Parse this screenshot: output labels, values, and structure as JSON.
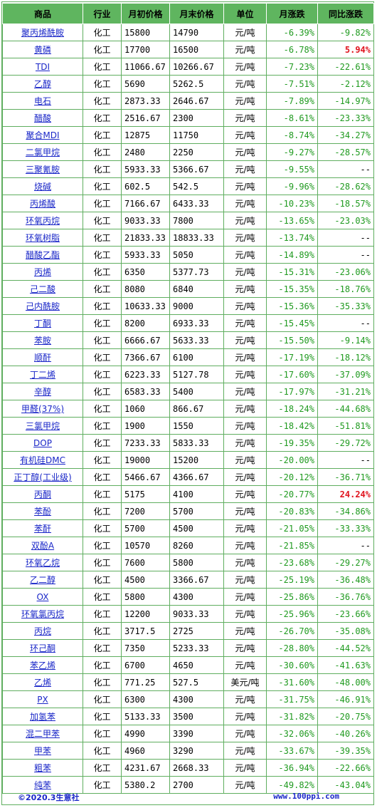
{
  "headers": {
    "name": "商品",
    "industry": "行业",
    "start": "月初价格",
    "end": "月末价格",
    "unit": "单位",
    "mom": "月涨跌",
    "yoy": "同比涨跌"
  },
  "rows": [
    {
      "name": "聚丙烯酰胺",
      "industry": "化工",
      "start": "15800",
      "end": "14790",
      "unit": "元/吨",
      "mom": "-6.39%",
      "yoy": "-9.82%"
    },
    {
      "name": "黄磷",
      "industry": "化工",
      "start": "17700",
      "end": "16500",
      "unit": "元/吨",
      "mom": "-6.78%",
      "yoy": "5.94%"
    },
    {
      "name": "TDI",
      "industry": "化工",
      "start": "11066.67",
      "end": "10266.67",
      "unit": "元/吨",
      "mom": "-7.23%",
      "yoy": "-22.61%"
    },
    {
      "name": "乙醇",
      "industry": "化工",
      "start": "5690",
      "end": "5262.5",
      "unit": "元/吨",
      "mom": "-7.51%",
      "yoy": "-2.12%"
    },
    {
      "name": "电石",
      "industry": "化工",
      "start": "2873.33",
      "end": "2646.67",
      "unit": "元/吨",
      "mom": "-7.89%",
      "yoy": "-14.97%"
    },
    {
      "name": "醋酸",
      "industry": "化工",
      "start": "2516.67",
      "end": "2300",
      "unit": "元/吨",
      "mom": "-8.61%",
      "yoy": "-23.33%"
    },
    {
      "name": "聚合MDI",
      "industry": "化工",
      "start": "12875",
      "end": "11750",
      "unit": "元/吨",
      "mom": "-8.74%",
      "yoy": "-34.27%"
    },
    {
      "name": "二氯甲烷",
      "industry": "化工",
      "start": "2480",
      "end": "2250",
      "unit": "元/吨",
      "mom": "-9.27%",
      "yoy": "-28.57%"
    },
    {
      "name": "三聚氰胺",
      "industry": "化工",
      "start": "5933.33",
      "end": "5366.67",
      "unit": "元/吨",
      "mom": "-9.55%",
      "yoy": "--"
    },
    {
      "name": "烧碱",
      "industry": "化工",
      "start": "602.5",
      "end": "542.5",
      "unit": "元/吨",
      "mom": "-9.96%",
      "yoy": "-28.62%"
    },
    {
      "name": "丙烯酸",
      "industry": "化工",
      "start": "7166.67",
      "end": "6433.33",
      "unit": "元/吨",
      "mom": "-10.23%",
      "yoy": "-18.57%"
    },
    {
      "name": "环氧丙烷",
      "industry": "化工",
      "start": "9033.33",
      "end": "7800",
      "unit": "元/吨",
      "mom": "-13.65%",
      "yoy": "-23.03%"
    },
    {
      "name": "环氧树脂",
      "industry": "化工",
      "start": "21833.33",
      "end": "18833.33",
      "unit": "元/吨",
      "mom": "-13.74%",
      "yoy": "--"
    },
    {
      "name": "醋酸乙酯",
      "industry": "化工",
      "start": "5933.33",
      "end": "5050",
      "unit": "元/吨",
      "mom": "-14.89%",
      "yoy": "--"
    },
    {
      "name": "丙烯",
      "industry": "化工",
      "start": "6350",
      "end": "5377.73",
      "unit": "元/吨",
      "mom": "-15.31%",
      "yoy": "-23.06%"
    },
    {
      "name": "己二酸",
      "industry": "化工",
      "start": "8080",
      "end": "6840",
      "unit": "元/吨",
      "mom": "-15.35%",
      "yoy": "-18.76%"
    },
    {
      "name": "己内酰胺",
      "industry": "化工",
      "start": "10633.33",
      "end": "9000",
      "unit": "元/吨",
      "mom": "-15.36%",
      "yoy": "-35.33%"
    },
    {
      "name": "丁酮",
      "industry": "化工",
      "start": "8200",
      "end": "6933.33",
      "unit": "元/吨",
      "mom": "-15.45%",
      "yoy": "--"
    },
    {
      "name": "苯胺",
      "industry": "化工",
      "start": "6666.67",
      "end": "5633.33",
      "unit": "元/吨",
      "mom": "-15.50%",
      "yoy": "-9.14%"
    },
    {
      "name": "顺酐",
      "industry": "化工",
      "start": "7366.67",
      "end": "6100",
      "unit": "元/吨",
      "mom": "-17.19%",
      "yoy": "-18.12%"
    },
    {
      "name": "丁二烯",
      "industry": "化工",
      "start": "6223.33",
      "end": "5127.78",
      "unit": "元/吨",
      "mom": "-17.60%",
      "yoy": "-37.09%"
    },
    {
      "name": "辛醇",
      "industry": "化工",
      "start": "6583.33",
      "end": "5400",
      "unit": "元/吨",
      "mom": "-17.97%",
      "yoy": "-31.21%"
    },
    {
      "name": "甲醛(37%)",
      "industry": "化工",
      "start": "1060",
      "end": "866.67",
      "unit": "元/吨",
      "mom": "-18.24%",
      "yoy": "-44.68%"
    },
    {
      "name": "三氯甲烷",
      "industry": "化工",
      "start": "1900",
      "end": "1550",
      "unit": "元/吨",
      "mom": "-18.42%",
      "yoy": "-51.81%"
    },
    {
      "name": "DOP",
      "industry": "化工",
      "start": "7233.33",
      "end": "5833.33",
      "unit": "元/吨",
      "mom": "-19.35%",
      "yoy": "-29.72%"
    },
    {
      "name": "有机硅DMC",
      "industry": "化工",
      "start": "19000",
      "end": "15200",
      "unit": "元/吨",
      "mom": "-20.00%",
      "yoy": "--"
    },
    {
      "name": "正丁醇(工业级)",
      "industry": "化工",
      "start": "5466.67",
      "end": "4366.67",
      "unit": "元/吨",
      "mom": "-20.12%",
      "yoy": "-36.71%"
    },
    {
      "name": "丙酮",
      "industry": "化工",
      "start": "5175",
      "end": "4100",
      "unit": "元/吨",
      "mom": "-20.77%",
      "yoy": "24.24%"
    },
    {
      "name": "苯酚",
      "industry": "化工",
      "start": "7200",
      "end": "5700",
      "unit": "元/吨",
      "mom": "-20.83%",
      "yoy": "-34.86%"
    },
    {
      "name": "苯酐",
      "industry": "化工",
      "start": "5700",
      "end": "4500",
      "unit": "元/吨",
      "mom": "-21.05%",
      "yoy": "-33.33%"
    },
    {
      "name": "双酚A",
      "industry": "化工",
      "start": "10570",
      "end": "8260",
      "unit": "元/吨",
      "mom": "-21.85%",
      "yoy": "--"
    },
    {
      "name": "环氧乙烷",
      "industry": "化工",
      "start": "7600",
      "end": "5800",
      "unit": "元/吨",
      "mom": "-23.68%",
      "yoy": "-29.27%"
    },
    {
      "name": "乙二醇",
      "industry": "化工",
      "start": "4500",
      "end": "3366.67",
      "unit": "元/吨",
      "mom": "-25.19%",
      "yoy": "-36.48%"
    },
    {
      "name": "OX",
      "industry": "化工",
      "start": "5800",
      "end": "4300",
      "unit": "元/吨",
      "mom": "-25.86%",
      "yoy": "-36.76%"
    },
    {
      "name": "环氧氯丙烷",
      "industry": "化工",
      "start": "12200",
      "end": "9033.33",
      "unit": "元/吨",
      "mom": "-25.96%",
      "yoy": "-23.66%"
    },
    {
      "name": "丙烷",
      "industry": "化工",
      "start": "3717.5",
      "end": "2725",
      "unit": "元/吨",
      "mom": "-26.70%",
      "yoy": "-35.08%"
    },
    {
      "name": "环己酮",
      "industry": "化工",
      "start": "7350",
      "end": "5233.33",
      "unit": "元/吨",
      "mom": "-28.80%",
      "yoy": "-44.52%"
    },
    {
      "name": "苯乙烯",
      "industry": "化工",
      "start": "6700",
      "end": "4650",
      "unit": "元/吨",
      "mom": "-30.60%",
      "yoy": "-41.63%"
    },
    {
      "name": "乙烯",
      "industry": "化工",
      "start": "771.25",
      "end": "527.5",
      "unit": "美元/吨",
      "mom": "-31.60%",
      "yoy": "-48.00%"
    },
    {
      "name": "PX",
      "industry": "化工",
      "start": "6300",
      "end": "4300",
      "unit": "元/吨",
      "mom": "-31.75%",
      "yoy": "-46.91%"
    },
    {
      "name": "加氢苯",
      "industry": "化工",
      "start": "5133.33",
      "end": "3500",
      "unit": "元/吨",
      "mom": "-31.82%",
      "yoy": "-20.75%"
    },
    {
      "name": "混二甲苯",
      "industry": "化工",
      "start": "4990",
      "end": "3390",
      "unit": "元/吨",
      "mom": "-32.06%",
      "yoy": "-40.26%"
    },
    {
      "name": "甲苯",
      "industry": "化工",
      "start": "4960",
      "end": "3290",
      "unit": "元/吨",
      "mom": "-33.67%",
      "yoy": "-39.35%"
    },
    {
      "name": "粗苯",
      "industry": "化工",
      "start": "4231.67",
      "end": "2668.33",
      "unit": "元/吨",
      "mom": "-36.94%",
      "yoy": "-22.66%"
    },
    {
      "name": "纯苯",
      "industry": "化工",
      "start": "5380.2",
      "end": "2700",
      "unit": "元/吨",
      "mom": "-49.82%",
      "yoy": "-43.04%"
    }
  ],
  "footer": {
    "copyright": "©2020.3生意社",
    "site": "www.100ppi.com"
  },
  "colors": {
    "header_bg": "#5fb55f",
    "border": "#5fae5f",
    "link": "#1a27c8",
    "down": "#1f9a1f",
    "up": "#e0141e"
  }
}
